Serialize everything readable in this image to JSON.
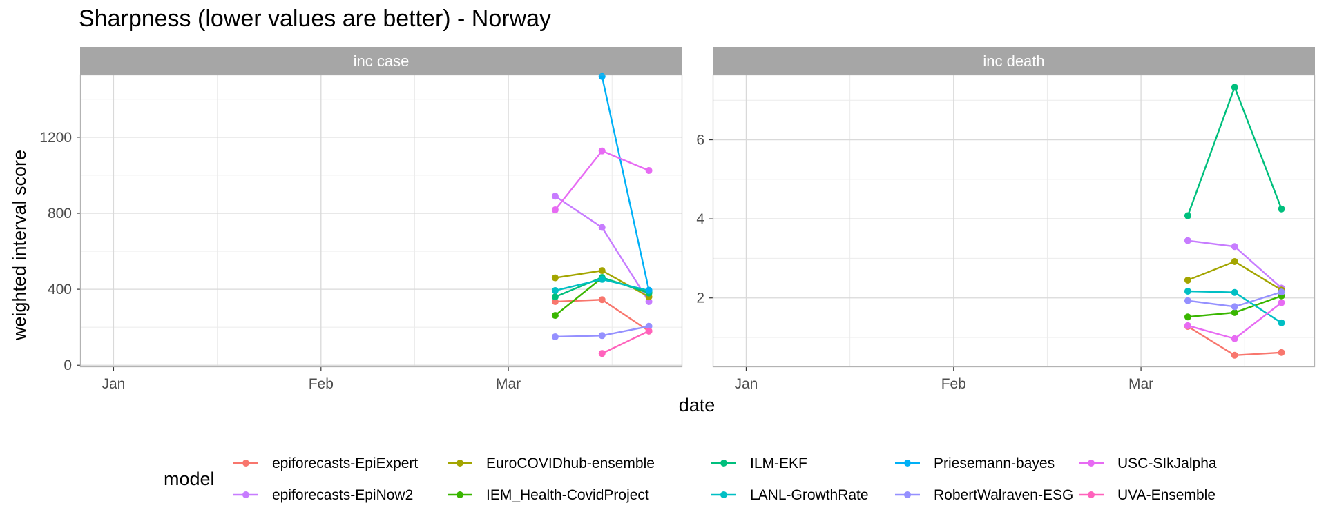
{
  "chart_data": {
    "type": "line",
    "title": "Sharpness (lower values are better) - Norway",
    "xlabel": "date",
    "ylabel": "weighted interval score",
    "x_tick_labels": [
      "Jan",
      "Feb",
      "Mar"
    ],
    "x_tick_dates": [
      "2021-01-01",
      "2021-02-01",
      "2021-03-01"
    ],
    "xlim": [
      "2020-12-27",
      "2021-03-27"
    ],
    "dates": [
      "2021-03-08",
      "2021-03-15",
      "2021-03-22"
    ],
    "grid": true,
    "legend": {
      "title": "model",
      "position": "bottom"
    },
    "models": [
      {
        "name": "epiforecasts-EpiExpert",
        "color": "#F8766D"
      },
      {
        "name": "epiforecasts-EpiNow2",
        "color": "#CD9600"
      },
      {
        "name": "EuroCOVIDhub-ensemble",
        "color": "#7CAE00"
      },
      {
        "name": "IEM_Health-CovidProject",
        "color": "#00BE67"
      },
      {
        "name": "ILM-EKF",
        "color": "#00BF7D"
      },
      {
        "name": "LANL-GrowthRate",
        "color": "#00BFC4"
      },
      {
        "name": "Priesemann-bayes",
        "color": "#00A9FF"
      },
      {
        "name": "RobertWalraven-ESG",
        "color": "#8494FF"
      },
      {
        "name": "USC-SIkJalpha",
        "color": "#E76BF3"
      },
      {
        "name": "UVA-Ensemble",
        "color": "#FF61C3"
      }
    ],
    "model_colors_exact": {
      "epiforecasts-EpiExpert": "#F8766D",
      "epiforecasts-EpiNow2": "#C77CFF",
      "EuroCOVIDhub-ensemble": "#A3A500",
      "IEM_Health-CovidProject": "#39B600",
      "ILM-EKF": "#00BF7D",
      "LANL-GrowthRate": "#00BFC4",
      "Priesemann-bayes": "#00B0F6",
      "RobertWalraven-ESG": "#9590FF",
      "USC-SIkJalpha": "#E76BF3",
      "UVA-Ensemble": "#FF62BC"
    },
    "panels": [
      {
        "strip": "inc case",
        "ylim": [
          -10,
          1530
        ],
        "y_ticks": [
          0,
          400,
          800,
          1200
        ],
        "y_tick_labels": [
          "0",
          "400",
          "800",
          "1200"
        ],
        "series": [
          {
            "name": "epiforecasts-EpiExpert",
            "values": [
              335,
              345,
              180
            ]
          },
          {
            "name": "epiforecasts-EpiNow2",
            "values": [
              890,
              725,
              335
            ]
          },
          {
            "name": "EuroCOVIDhub-ensemble",
            "values": [
              460,
              498,
              360
            ]
          },
          {
            "name": "IEM_Health-CovidProject",
            "values": [
              262,
              460,
              385
            ]
          },
          {
            "name": "ILM-EKF",
            "values": [
              360,
              462,
              380
            ]
          },
          {
            "name": "LANL-GrowthRate",
            "values": [
              393,
              452,
              393
            ]
          },
          {
            "name": "Priesemann-bayes",
            "values": [
              null,
              1520,
              395
            ]
          },
          {
            "name": "RobertWalraven-ESG",
            "values": [
              150,
              156,
              205
            ]
          },
          {
            "name": "USC-SIkJalpha",
            "values": [
              818,
              1128,
              1025
            ]
          },
          {
            "name": "UVA-Ensemble",
            "values": [
              null,
              62,
              180
            ]
          }
        ]
      },
      {
        "strip": "inc death",
        "ylim": [
          0.25,
          7.65
        ],
        "y_ticks": [
          2,
          4,
          6
        ],
        "y_tick_labels": [
          "2",
          "4",
          "6"
        ],
        "series": [
          {
            "name": "epiforecasts-EpiExpert",
            "values": [
              1.28,
              0.55,
              0.62
            ]
          },
          {
            "name": "epiforecasts-EpiNow2",
            "values": [
              3.45,
              3.3,
              2.25
            ]
          },
          {
            "name": "EuroCOVIDhub-ensemble",
            "values": [
              2.45,
              2.92,
              2.2
            ]
          },
          {
            "name": "IEM_Health-CovidProject",
            "values": [
              1.52,
              1.63,
              2.05
            ]
          },
          {
            "name": "ILM-EKF",
            "values": [
              4.08,
              7.33,
              4.25
            ]
          },
          {
            "name": "LANL-GrowthRate",
            "values": [
              2.17,
              2.14,
              1.37
            ]
          },
          {
            "name": "Priesemann-bayes",
            "values": [
              null,
              null,
              null
            ]
          },
          {
            "name": "RobertWalraven-ESG",
            "values": [
              1.93,
              1.78,
              2.15
            ]
          },
          {
            "name": "USC-SIkJalpha",
            "values": [
              1.3,
              0.97,
              1.88
            ]
          },
          {
            "name": "UVA-Ensemble",
            "values": [
              null,
              null,
              null
            ]
          }
        ]
      }
    ]
  }
}
